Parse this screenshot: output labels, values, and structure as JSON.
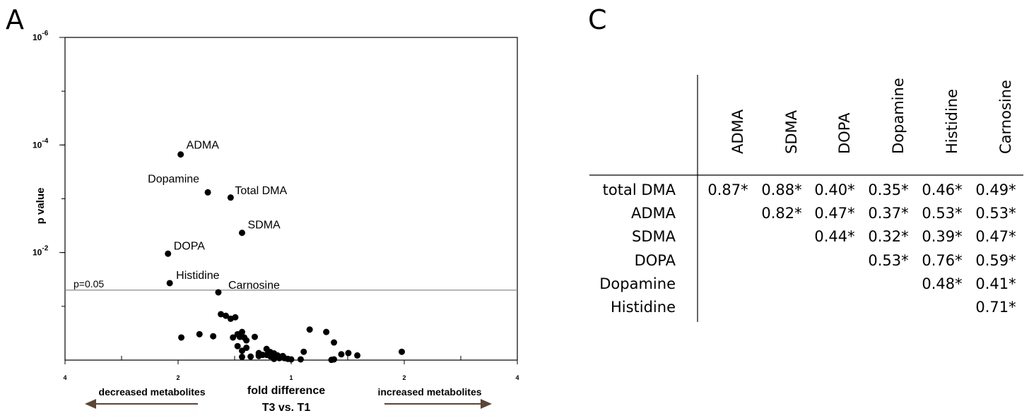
{
  "panels": {
    "a": "A",
    "c": "C"
  },
  "chart_data": {
    "type": "scatter",
    "ylabel": "p value",
    "xlabel": "fold difference",
    "xlabel_sub": "T3 vs. T1",
    "x_ticks": [
      "4",
      "2",
      "1",
      "2",
      "4"
    ],
    "y_ticks": [
      {
        "base": "10",
        "exp": "-6",
        "p": 1e-06
      },
      {
        "base": "10",
        "exp": "-4",
        "p": 0.0001
      },
      {
        "base": "10",
        "exp": "-2",
        "p": 0.01
      }
    ],
    "y_range_log10": [
      0,
      6
    ],
    "threshold": {
      "label": "p=0.05",
      "p": 0.05
    },
    "annotations": {
      "left": "decreased metabolites",
      "right": "increased metabolites"
    },
    "arrow_color": "#5a4536",
    "labeled_points": [
      {
        "name": "ADMA",
        "fold": 0.508,
        "p": 0.00015
      },
      {
        "name": "Dopamine",
        "fold": 0.6,
        "p": 0.00076
      },
      {
        "name": "Total DMA",
        "fold": 0.69,
        "p": 0.00095
      },
      {
        "name": "SDMA",
        "fold": 0.74,
        "p": 0.0043
      },
      {
        "name": "DOPA",
        "fold": 0.47,
        "p": 0.0105
      },
      {
        "name": "Histidine",
        "fold": 0.475,
        "p": 0.037
      },
      {
        "name": "Carnosine",
        "fold": 0.64,
        "p": 0.055
      }
    ],
    "points": [
      {
        "fold": 0.51,
        "p": 0.38
      },
      {
        "fold": 0.57,
        "p": 0.33
      },
      {
        "fold": 0.62,
        "p": 0.36
      },
      {
        "fold": 0.65,
        "p": 0.14
      },
      {
        "fold": 0.67,
        "p": 0.15
      },
      {
        "fold": 0.69,
        "p": 0.17
      },
      {
        "fold": 0.71,
        "p": 0.16
      },
      {
        "fold": 0.72,
        "p": 0.33
      },
      {
        "fold": 0.74,
        "p": 0.3
      },
      {
        "fold": 0.7,
        "p": 0.38
      },
      {
        "fold": 0.73,
        "p": 0.37
      },
      {
        "fold": 0.75,
        "p": 0.38
      },
      {
        "fold": 0.76,
        "p": 0.43
      },
      {
        "fold": 0.8,
        "p": 0.37
      },
      {
        "fold": 0.72,
        "p": 0.55
      },
      {
        "fold": 0.76,
        "p": 0.59
      },
      {
        "fold": 0.74,
        "p": 0.67
      },
      {
        "fold": 0.74,
        "p": 0.87
      },
      {
        "fold": 0.78,
        "p": 0.86
      },
      {
        "fold": 0.82,
        "p": 0.74
      },
      {
        "fold": 0.82,
        "p": 0.79
      },
      {
        "fold": 0.82,
        "p": 0.84
      },
      {
        "fold": 0.84,
        "p": 0.8
      },
      {
        "fold": 0.86,
        "p": 0.62
      },
      {
        "fold": 0.86,
        "p": 0.8
      },
      {
        "fold": 0.88,
        "p": 0.85
      },
      {
        "fold": 0.88,
        "p": 0.71
      },
      {
        "fold": 0.9,
        "p": 0.75
      },
      {
        "fold": 0.9,
        "p": 0.87
      },
      {
        "fold": 0.92,
        "p": 0.82
      },
      {
        "fold": 0.93,
        "p": 0.92
      },
      {
        "fold": 0.95,
        "p": 0.84
      },
      {
        "fold": 0.96,
        "p": 0.92
      },
      {
        "fold": 0.98,
        "p": 0.95
      },
      {
        "fold": 1.0,
        "p": 0.97
      },
      {
        "fold": 0.9,
        "p": 0.95
      },
      {
        "fold": 1.06,
        "p": 0.97
      },
      {
        "fold": 1.08,
        "p": 0.7
      },
      {
        "fold": 1.12,
        "p": 0.27
      },
      {
        "fold": 1.24,
        "p": 0.3
      },
      {
        "fold": 1.3,
        "p": 0.47
      },
      {
        "fold": 1.28,
        "p": 0.99
      },
      {
        "fold": 1.3,
        "p": 0.97
      },
      {
        "fold": 1.36,
        "p": 0.78
      },
      {
        "fold": 1.42,
        "p": 0.74
      },
      {
        "fold": 1.5,
        "p": 0.82
      },
      {
        "fold": 1.97,
        "p": 0.7
      }
    ]
  },
  "table": {
    "columns": [
      "ADMA",
      "SDMA",
      "DOPA",
      "Dopamine",
      "Histidine",
      "Carnosine"
    ],
    "rows": [
      {
        "label": "total DMA",
        "values": [
          "0.87*",
          "0.88*",
          "0.40*",
          "0.35*",
          "0.46*",
          "0.49*"
        ]
      },
      {
        "label": "ADMA",
        "values": [
          "",
          "0.82*",
          "0.47*",
          "0.37*",
          "0.53*",
          "0.53*"
        ]
      },
      {
        "label": "SDMA",
        "values": [
          "",
          "",
          "0.44*",
          "0.32*",
          "0.39*",
          "0.47*"
        ]
      },
      {
        "label": "DOPA",
        "values": [
          "",
          "",
          "",
          "0.53*",
          "0.76*",
          "0.59*"
        ]
      },
      {
        "label": "Dopamine",
        "values": [
          "",
          "",
          "",
          "",
          "0.48*",
          "0.41*"
        ]
      },
      {
        "label": "Histidine",
        "values": [
          "",
          "",
          "",
          "",
          "",
          "0.71*"
        ]
      }
    ]
  }
}
